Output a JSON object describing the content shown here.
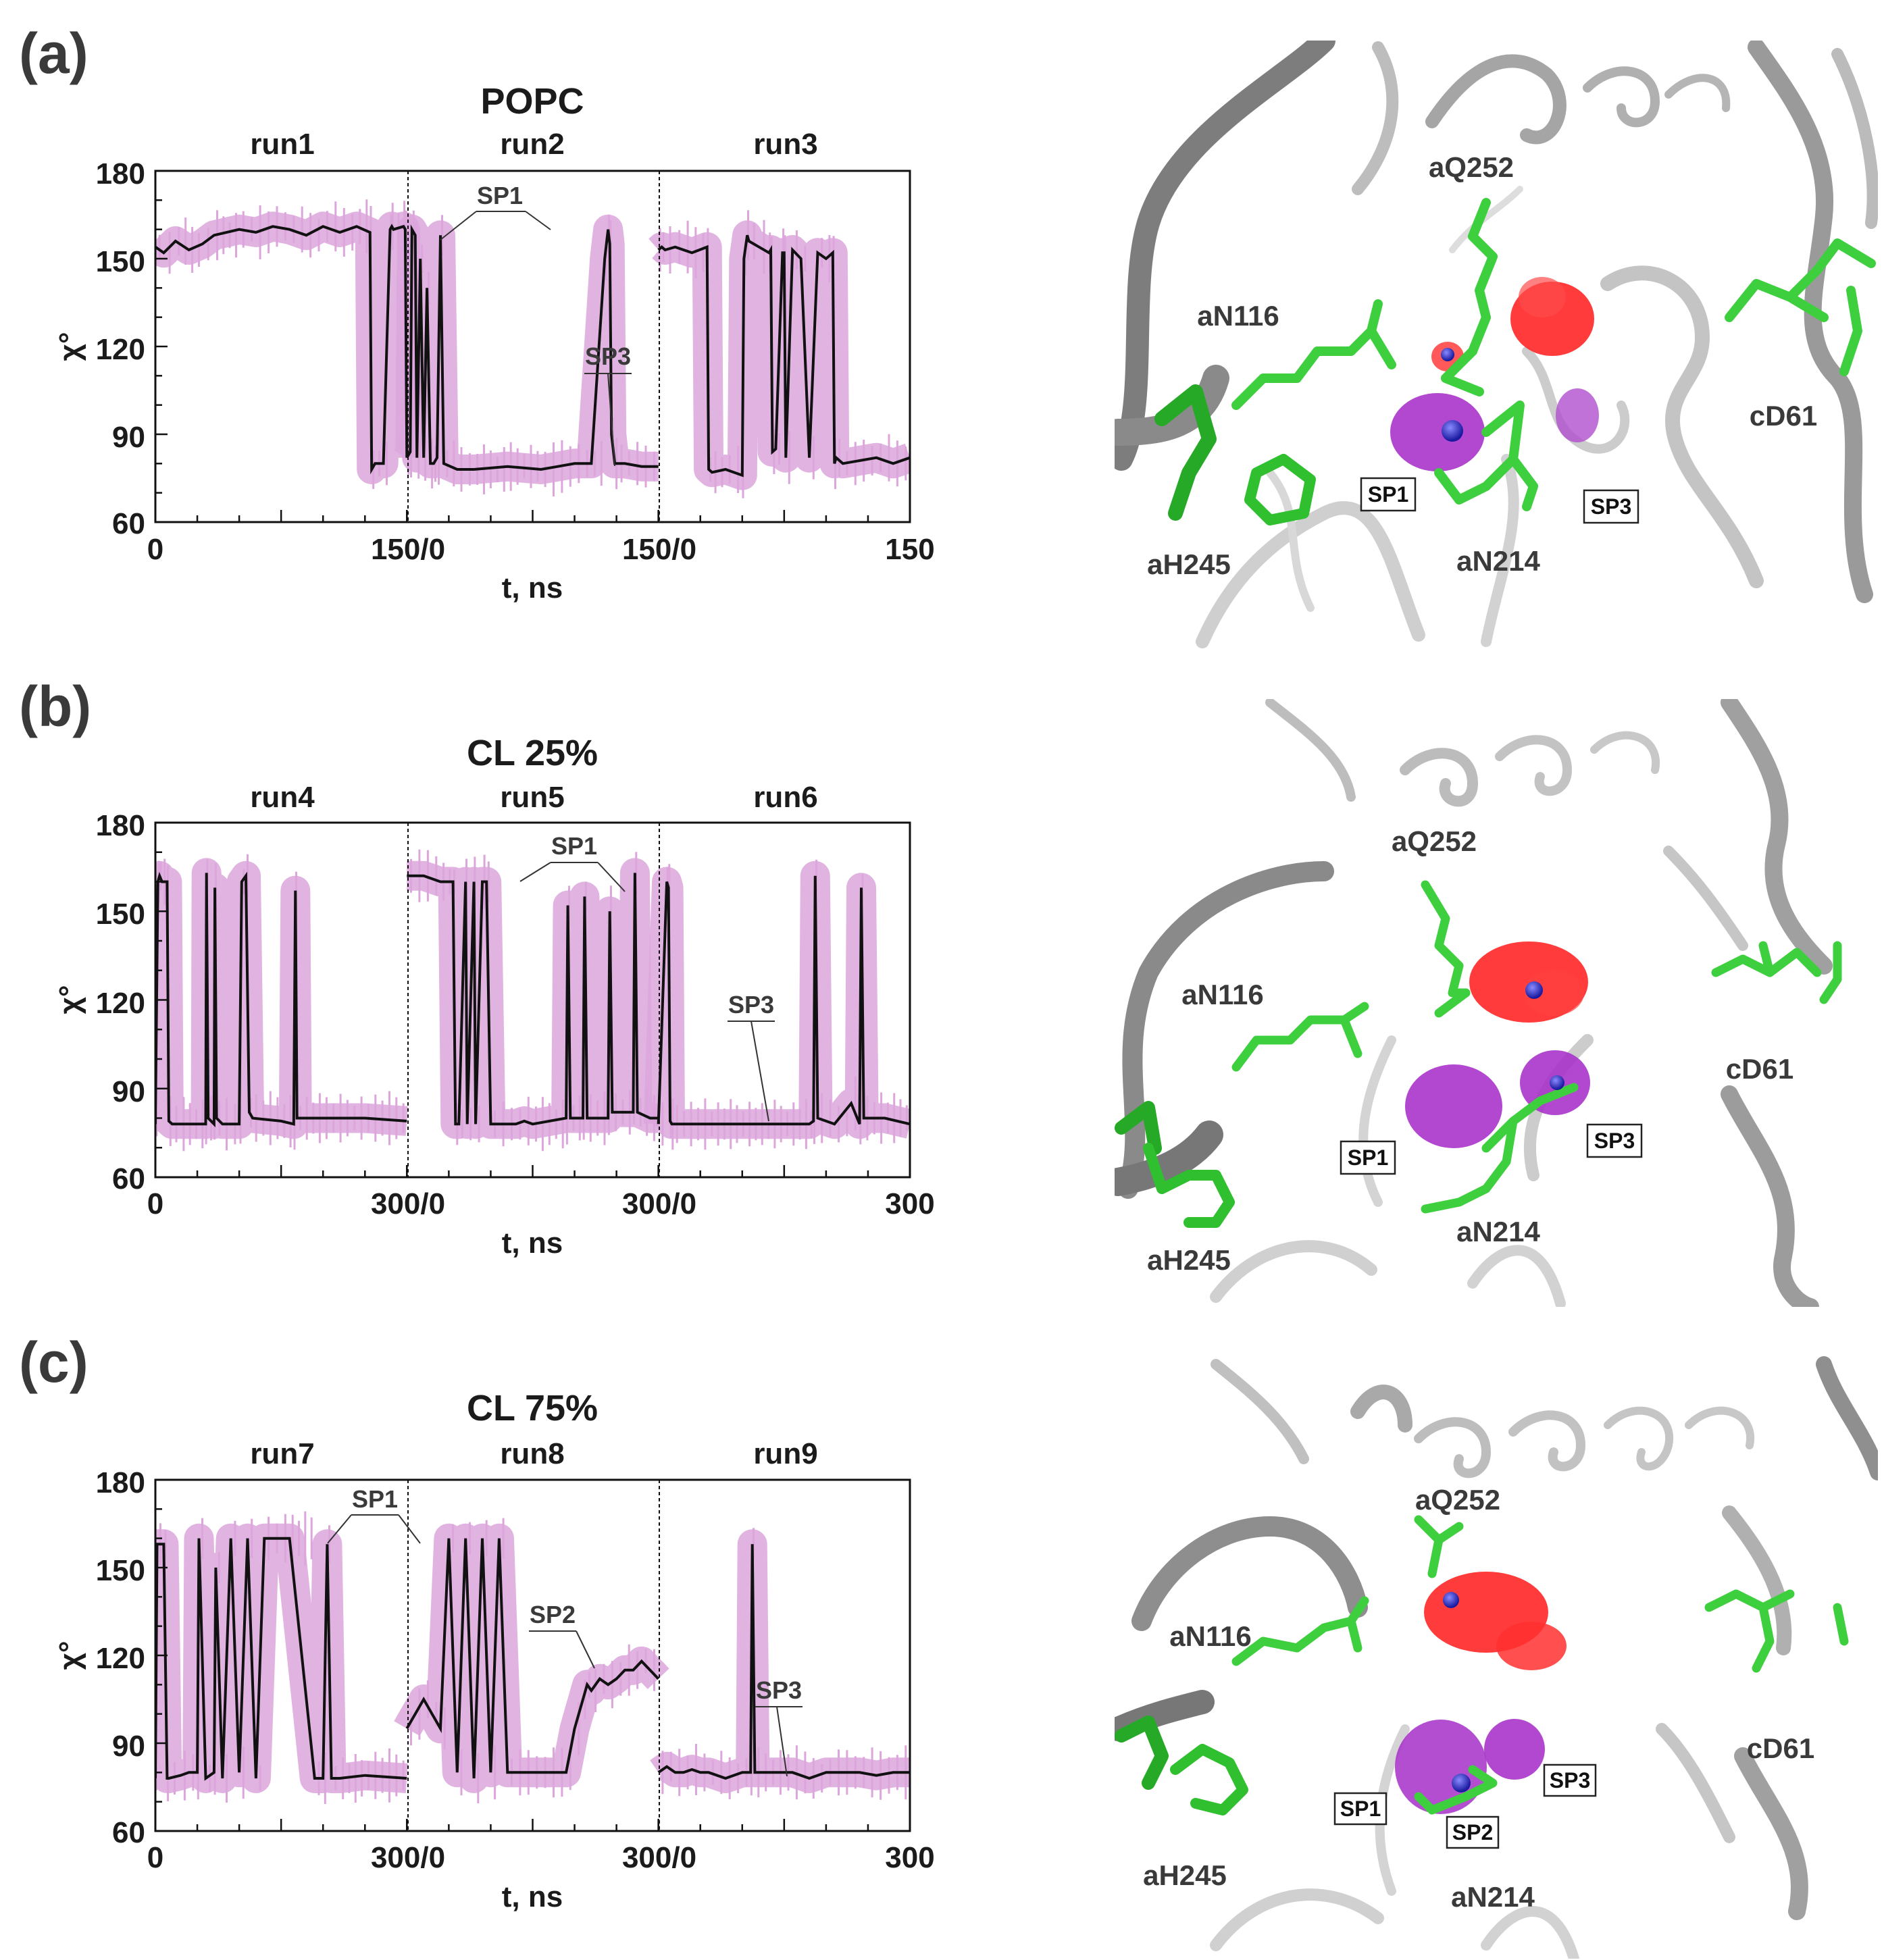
{
  "figure": {
    "panels": [
      {
        "letter": "(a)",
        "title": "POPC",
        "runs": [
          "run1",
          "run2",
          "run3"
        ],
        "y_ticks": [
          "180",
          "150",
          "120",
          "90",
          "60"
        ],
        "x_ticks": [
          "0",
          "150/0",
          "150/0",
          "150"
        ],
        "ylabel": "χ°",
        "xlabel": "t, ns",
        "annotations": [
          "SP1",
          "SP3"
        ],
        "structure_labels": {
          "q252": "aQ252",
          "n116": "aN116",
          "h245": "aH245",
          "n214": "aN214",
          "d61": "cD61"
        },
        "site_labels": [
          "SP1",
          "SP3"
        ]
      },
      {
        "letter": "(b)",
        "title": "CL 25%",
        "runs": [
          "run4",
          "run5",
          "run6"
        ],
        "y_ticks": [
          "180",
          "150",
          "120",
          "90",
          "60"
        ],
        "x_ticks": [
          "0",
          "300/0",
          "300/0",
          "300"
        ],
        "ylabel": "χ°",
        "xlabel": "t, ns",
        "annotations": [
          "SP1",
          "SP3"
        ],
        "structure_labels": {
          "q252": "aQ252",
          "n116": "aN116",
          "h245": "aH245",
          "n214": "aN214",
          "d61": "cD61"
        },
        "site_labels": [
          "SP1",
          "SP3"
        ]
      },
      {
        "letter": "(c)",
        "title": "CL 75%",
        "runs": [
          "run7",
          "run8",
          "run9"
        ],
        "y_ticks": [
          "180",
          "150",
          "120",
          "90",
          "60"
        ],
        "x_ticks": [
          "0",
          "300/0",
          "300/0",
          "300"
        ],
        "ylabel": "χ°",
        "xlabel": "t, ns",
        "annotations": [
          "SP1",
          "SP2",
          "SP3"
        ],
        "structure_labels": {
          "q252": "aQ252",
          "n116": "aN116",
          "h245": "aH245",
          "n214": "aN214",
          "d61": "cD61"
        },
        "site_labels": [
          "SP1",
          "SP2",
          "SP3"
        ]
      }
    ],
    "colors": {
      "trace": "#111111",
      "band": "#dca6dc",
      "ribbon": "#c9c9c9",
      "ribbon_dark": "#8a8a8a",
      "residue": "#3ecf3e",
      "residue_dark": "#1f9e1f",
      "cloud_red": "#ff2a2a",
      "cloud_purple": "#a62fc8",
      "ion": "#2020b8"
    }
  },
  "chart_data": [
    {
      "type": "line",
      "title": "POPC",
      "xlabel": "t, ns",
      "ylabel": "χ°",
      "ylim": [
        60,
        180
      ],
      "segments": [
        "run1",
        "run2",
        "run3"
      ],
      "segment_length_ns": 150,
      "series": [
        {
          "name": "run1",
          "x": [
            0,
            5,
            12,
            20,
            28,
            35,
            50,
            60,
            70,
            80,
            90,
            100,
            110,
            120,
            128,
            129,
            131,
            136,
            140,
            141,
            142,
            148,
            149,
            150
          ],
          "y": [
            154,
            152,
            156,
            153,
            155,
            158,
            160,
            159,
            161,
            160,
            158,
            161,
            159,
            161,
            159,
            78,
            80,
            80,
            160,
            161,
            160,
            161,
            160,
            82
          ]
        },
        {
          "name": "run2",
          "x": [
            0,
            2,
            3,
            5,
            6,
            8,
            10,
            12,
            14,
            16,
            18,
            20,
            22,
            30,
            40,
            60,
            80,
            90,
            100,
            110,
            118,
            120,
            121,
            122,
            124,
            126,
            130,
            140,
            150
          ],
          "y": [
            82,
            84,
            160,
            158,
            82,
            150,
            82,
            140,
            80,
            80,
            82,
            158,
            80,
            78,
            78,
            79,
            78,
            79,
            80,
            80,
            150,
            160,
            155,
            90,
            80,
            80,
            80,
            79,
            79
          ]
        },
        {
          "name": "run3",
          "x": [
            0,
            2,
            4,
            10,
            20,
            29,
            30,
            32,
            40,
            50,
            51,
            53,
            54,
            60,
            66,
            67,
            68,
            70,
            74,
            75,
            76,
            80,
            85,
            90,
            95,
            100,
            104,
            105,
            106,
            110,
            120,
            130,
            140,
            150
          ],
          "y": [
            153,
            154,
            153,
            154,
            152,
            154,
            78,
            77,
            78,
            76,
            150,
            158,
            156,
            154,
            152,
            153,
            84,
            85,
            152,
            152,
            82,
            153,
            150,
            82,
            152,
            150,
            152,
            80,
            82,
            80,
            81,
            82,
            80,
            82
          ]
        }
      ]
    },
    {
      "type": "line",
      "title": "CL 25%",
      "xlabel": "t, ns",
      "ylabel": "χ°",
      "ylim": [
        60,
        180
      ],
      "segments": [
        "run4",
        "run5",
        "run6"
      ],
      "segment_length_ns": 300,
      "series": [
        {
          "name": "run4",
          "x": [
            0,
            3,
            5,
            8,
            14,
            16,
            20,
            30,
            60,
            61,
            63,
            70,
            71,
            73,
            80,
            100,
            103,
            108,
            112,
            116,
            150,
            165,
            167,
            169,
            200,
            250,
            300
          ],
          "y": [
            78,
            160,
            162,
            160,
            160,
            79,
            78,
            78,
            78,
            163,
            80,
            78,
            158,
            80,
            78,
            78,
            160,
            162,
            82,
            80,
            79,
            78,
            157,
            80,
            80,
            80,
            79
          ]
        },
        {
          "name": "run5",
          "x": [
            0,
            20,
            40,
            55,
            58,
            62,
            70,
            72,
            80,
            82,
            90,
            95,
            100,
            110,
            130,
            140,
            150,
            190,
            192,
            195,
            210,
            212,
            215,
            240,
            242,
            245,
            270,
            272,
            275,
            290,
            300
          ],
          "y": [
            162,
            162,
            160,
            160,
            78,
            78,
            160,
            78,
            160,
            78,
            160,
            160,
            78,
            78,
            78,
            79,
            78,
            80,
            152,
            80,
            80,
            155,
            80,
            80,
            150,
            82,
            82,
            163,
            82,
            80,
            80
          ]
        },
        {
          "name": "run6",
          "x": [
            0,
            10,
            12,
            14,
            16,
            18,
            60,
            120,
            180,
            185,
            187,
            190,
            210,
            230,
            240,
            242,
            245,
            270,
            300
          ],
          "y": [
            78,
            160,
            158,
            79,
            78,
            78,
            78,
            78,
            78,
            79,
            162,
            80,
            78,
            85,
            78,
            158,
            80,
            80,
            78
          ]
        }
      ]
    },
    {
      "type": "line",
      "title": "CL 75%",
      "xlabel": "t, ns",
      "ylabel": "χ°",
      "ylim": [
        60,
        180
      ],
      "segments": [
        "run7",
        "run8",
        "run9"
      ],
      "segment_length_ns": 300,
      "series": [
        {
          "name": "run7",
          "x": [
            0,
            2,
            10,
            14,
            16,
            30,
            40,
            50,
            52,
            60,
            70,
            72,
            80,
            90,
            100,
            110,
            120,
            130,
            140,
            160,
            190,
            200,
            205,
            210,
            220,
            250,
            300
          ],
          "y": [
            78,
            158,
            158,
            78,
            78,
            79,
            80,
            80,
            160,
            78,
            80,
            150,
            78,
            160,
            80,
            160,
            78,
            160,
            160,
            160,
            78,
            78,
            158,
            78,
            78,
            79,
            78
          ]
        },
        {
          "name": "run8",
          "x": [
            0,
            10,
            20,
            30,
            40,
            50,
            60,
            70,
            80,
            90,
            100,
            110,
            120,
            140,
            160,
            180,
            190,
            200,
            210,
            215,
            220,
            230,
            240,
            250,
            260,
            270,
            280,
            290,
            300
          ],
          "y": [
            95,
            100,
            105,
            100,
            95,
            160,
            80,
            160,
            78,
            160,
            80,
            160,
            80,
            80,
            80,
            80,
            80,
            95,
            105,
            110,
            108,
            112,
            110,
            112,
            115,
            115,
            118,
            115,
            112
          ]
        },
        {
          "name": "run9",
          "x": [
            0,
            10,
            20,
            30,
            40,
            50,
            60,
            80,
            100,
            110,
            112,
            115,
            150,
            160,
            180,
            200,
            220,
            240,
            260,
            280,
            300
          ],
          "y": [
            80,
            82,
            80,
            80,
            81,
            80,
            80,
            78,
            80,
            80,
            158,
            80,
            80,
            80,
            78,
            80,
            80,
            80,
            79,
            80,
            80
          ]
        }
      ]
    }
  ]
}
